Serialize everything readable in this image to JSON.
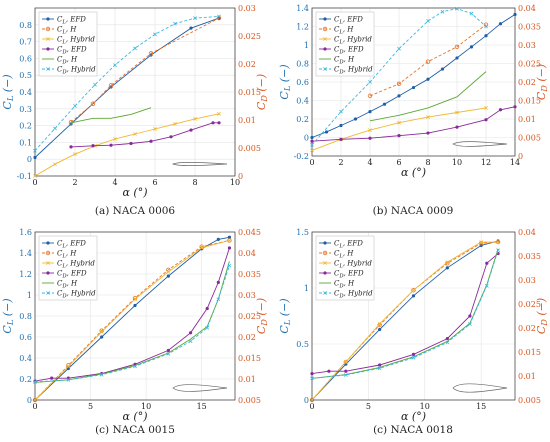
{
  "colors": {
    "cl_efd": "#1f5fa8",
    "cl_h": "#e8722a",
    "cl_hybrid": "#f0b830",
    "cd_efd": "#8a2a9a",
    "cd_h": "#5aa832",
    "cd_hybrid": "#3cb7e0",
    "left_axis": "#1f6fb0",
    "right_axis": "#d9541e"
  },
  "chart_data": [
    {
      "type": "line",
      "caption": "(a) NACA 0006",
      "xlabel": "α (°)",
      "ylabel_left": "C_L (−)",
      "ylabel_right": "C_D (−)",
      "xlim": [
        0,
        10
      ],
      "xticks": [
        0,
        2,
        4,
        6,
        8,
        10
      ],
      "ylim_left": [
        -0.1,
        0.9
      ],
      "yticks_left": [
        -0.1,
        0,
        0.1,
        0.2,
        0.3,
        0.4,
        0.5,
        0.6,
        0.7,
        0.8
      ],
      "ylim_right": [
        0,
        0.03
      ],
      "yticks_right": [
        0,
        0.005,
        0.01,
        0.015,
        0.02,
        0.025,
        0.03
      ],
      "legend": [
        "C_L, EFD",
        "C_L, H",
        "C_L, Hybrid",
        "C_D, EFD",
        "C_D, H",
        "C_D, Hybrid"
      ],
      "legend_position": "top-left",
      "series": [
        {
          "name": "C_L, EFD",
          "axis": "left",
          "x": [
            0,
            1.8,
            3.8,
            5.8,
            7.8,
            9.2
          ],
          "y": [
            0.01,
            0.21,
            0.43,
            0.62,
            0.78,
            0.84
          ]
        },
        {
          "name": "C_L, H",
          "axis": "left",
          "x": [
            1.8,
            2.9,
            3.8,
            5.8,
            9.2
          ],
          "y": [
            0.22,
            0.33,
            0.44,
            0.63,
            0.84
          ]
        },
        {
          "name": "C_L, Hybrid",
          "axis": "left",
          "x": [
            0,
            1,
            2,
            3,
            4,
            5,
            6,
            7,
            8,
            9.2
          ],
          "y": [
            -0.1,
            -0.03,
            0.03,
            0.08,
            0.12,
            0.15,
            0.18,
            0.21,
            0.24,
            0.27
          ]
        },
        {
          "name": "C_D, EFD",
          "axis": "right",
          "x": [
            1.8,
            2.9,
            3.8,
            4.8,
            5.8,
            6.8,
            7.8,
            8.9,
            9.2
          ],
          "y": [
            0.0052,
            0.0054,
            0.0055,
            0.0058,
            0.0062,
            0.007,
            0.0082,
            0.0095,
            0.0095
          ]
        },
        {
          "name": "C_D, H",
          "axis": "right",
          "x": [
            1.8,
            2.9,
            3.8,
            4.8,
            5.8
          ],
          "y": [
            0.0095,
            0.0103,
            0.0103,
            0.011,
            0.0122
          ]
        },
        {
          "name": "C_D, Hybrid",
          "axis": "right",
          "x": [
            0,
            1,
            2,
            3,
            4,
            5,
            6,
            7,
            8,
            9.2
          ],
          "y": [
            0.0045,
            0.0085,
            0.0125,
            0.0163,
            0.0198,
            0.0228,
            0.0253,
            0.0272,
            0.0282,
            0.0285
          ]
        }
      ]
    },
    {
      "type": "line",
      "caption": "(b) NACA 0009",
      "xlabel": "α (°)",
      "ylabel_left": "C_L (−)",
      "ylabel_right": "C_D (−)",
      "xlim": [
        0,
        14
      ],
      "xticks": [
        0,
        2,
        4,
        6,
        8,
        10,
        12,
        14
      ],
      "ylim_left": [
        -0.2,
        1.4
      ],
      "yticks_left": [
        -0.2,
        0,
        0.2,
        0.4,
        0.6,
        0.8,
        1,
        1.2,
        1.4
      ],
      "ylim_right": [
        0,
        0.04
      ],
      "yticks_right": [
        0,
        0.005,
        0.01,
        0.015,
        0.02,
        0.025,
        0.03,
        0.035,
        0.04
      ],
      "legend": [
        "C_L, EFD",
        "C_L, H",
        "C_L, Hybrid",
        "C_D, EFD",
        "C_D, H",
        "C_D, Hybrid"
      ],
      "legend_position": "top-left",
      "series": [
        {
          "name": "C_L, EFD",
          "axis": "left",
          "x": [
            0,
            1,
            2,
            3,
            4,
            5,
            6,
            7,
            8,
            9,
            10,
            11,
            12,
            13,
            14
          ],
          "y": [
            0,
            0.06,
            0.13,
            0.2,
            0.28,
            0.36,
            0.45,
            0.54,
            0.63,
            0.74,
            0.86,
            0.98,
            1.1,
            1.23,
            1.33
          ]
        },
        {
          "name": "C_L, H",
          "axis": "left",
          "x": [
            4,
            6,
            8,
            10,
            12
          ],
          "y": [
            0.45,
            0.58,
            0.82,
            0.98,
            1.22
          ]
        },
        {
          "name": "C_L, Hybrid",
          "axis": "left",
          "x": [
            0,
            2,
            4,
            6,
            8,
            10,
            12
          ],
          "y": [
            -0.14,
            -0.02,
            0.08,
            0.16,
            0.22,
            0.27,
            0.32
          ]
        },
        {
          "name": "C_D, EFD",
          "axis": "right",
          "x": [
            0,
            2,
            4,
            6,
            8,
            10,
            12,
            13,
            14
          ],
          "y": [
            0.004,
            0.0045,
            0.0048,
            0.0055,
            0.0062,
            0.0078,
            0.0098,
            0.0125,
            0.0133
          ]
        },
        {
          "name": "C_D, H",
          "axis": "right",
          "x": [
            4,
            6,
            8,
            10,
            12
          ],
          "y": [
            0.0095,
            0.011,
            0.013,
            0.016,
            0.0228
          ]
        },
        {
          "name": "C_D, Hybrid",
          "axis": "right",
          "x": [
            0,
            2,
            4,
            6,
            8,
            9,
            10,
            11,
            12
          ],
          "y": [
            0.003,
            0.012,
            0.02,
            0.029,
            0.0365,
            0.039,
            0.0398,
            0.0385,
            0.035
          ]
        }
      ]
    },
    {
      "type": "line",
      "caption": "(c) NACA 0015",
      "xlabel": "α (°)",
      "ylabel_left": "C_L (−)",
      "ylabel_right": "C_D (−)",
      "xlim": [
        0,
        18
      ],
      "xticks": [
        0,
        5,
        10,
        15
      ],
      "ylim_left": [
        0,
        1.6
      ],
      "yticks_left": [
        0,
        0.2,
        0.4,
        0.6,
        0.8,
        1,
        1.2,
        1.4,
        1.6
      ],
      "ylim_right": [
        0.005,
        0.045
      ],
      "yticks_right": [
        0.005,
        0.01,
        0.015,
        0.02,
        0.025,
        0.03,
        0.035,
        0.04,
        0.045
      ],
      "legend": [
        "C_L, EFD",
        "C_L, H",
        "C_L, Hybrid",
        "C_D, EFD",
        "C_D, H",
        "C_D, Hybrid"
      ],
      "legend_position": "top-left",
      "series": [
        {
          "name": "C_L, EFD",
          "axis": "left",
          "x": [
            0,
            3,
            6,
            9,
            12,
            15,
            16.5,
            17.5
          ],
          "y": [
            0,
            0.3,
            0.6,
            0.9,
            1.18,
            1.44,
            1.53,
            1.55
          ]
        },
        {
          "name": "C_L, H",
          "axis": "left",
          "x": [
            0,
            3,
            6,
            9,
            12,
            15,
            17.5
          ],
          "y": [
            0,
            0.33,
            0.66,
            0.97,
            1.24,
            1.46,
            1.52
          ]
        },
        {
          "name": "C_L, Hybrid",
          "axis": "left",
          "x": [
            0,
            3,
            6,
            9,
            12,
            15,
            17.5
          ],
          "y": [
            0,
            0.32,
            0.65,
            0.96,
            1.22,
            1.45,
            1.52
          ]
        },
        {
          "name": "C_D, EFD",
          "axis": "right",
          "x": [
            0,
            1.5,
            3,
            6,
            9,
            12,
            14,
            15.5,
            16.5,
            17.5
          ],
          "y": [
            0.0095,
            0.0102,
            0.0102,
            0.0113,
            0.0135,
            0.0168,
            0.021,
            0.0268,
            0.033,
            0.0412
          ]
        },
        {
          "name": "C_D, H",
          "axis": "right",
          "x": [
            0,
            3,
            6,
            9,
            12,
            14,
            15.5,
            16.5,
            17.5
          ],
          "y": [
            0.0092,
            0.0098,
            0.0112,
            0.0132,
            0.0162,
            0.0195,
            0.0225,
            0.029,
            0.038
          ]
        },
        {
          "name": "C_D, Hybrid",
          "axis": "right",
          "x": [
            0,
            3,
            6,
            9,
            12,
            14,
            15.5,
            16.5,
            17.5
          ],
          "y": [
            0.0093,
            0.0098,
            0.011,
            0.013,
            0.016,
            0.019,
            0.0222,
            0.029,
            0.037
          ]
        }
      ]
    },
    {
      "type": "line",
      "caption": "(c) NACA 0018",
      "xlabel": "α (°)",
      "ylabel_left": "C_L (−)",
      "ylabel_right": "C_D (−)",
      "xlim": [
        0,
        18
      ],
      "xticks": [
        0,
        5,
        10,
        15
      ],
      "ylim_left": [
        0,
        1.5
      ],
      "yticks_left": [
        0,
        0.5,
        1,
        1.5
      ],
      "ylim_right": [
        0.005,
        0.04
      ],
      "yticks_right": [
        0.005,
        0.01,
        0.015,
        0.02,
        0.025,
        0.03,
        0.035,
        0.04
      ],
      "legend": [
        "C_L, EFD",
        "C_L, H",
        "C_L, Hybrid",
        "C_D, EFD",
        "C_D, H",
        "C_D, Hybrid"
      ],
      "legend_position": "top-left",
      "series": [
        {
          "name": "C_L, EFD",
          "axis": "left",
          "x": [
            0,
            3,
            6,
            9,
            12,
            15,
            16.5
          ],
          "y": [
            0,
            0.32,
            0.63,
            0.93,
            1.18,
            1.38,
            1.42
          ]
        },
        {
          "name": "C_L, H",
          "axis": "left",
          "x": [
            0,
            3,
            6,
            9,
            12,
            15,
            16.5
          ],
          "y": [
            0,
            0.34,
            0.67,
            0.98,
            1.22,
            1.4,
            1.41
          ]
        },
        {
          "name": "C_L, Hybrid",
          "axis": "left",
          "x": [
            0,
            3,
            6,
            9,
            12,
            15,
            16.5
          ],
          "y": [
            0,
            0.34,
            0.68,
            0.98,
            1.23,
            1.41,
            1.41
          ]
        },
        {
          "name": "C_D, EFD",
          "axis": "right",
          "x": [
            0,
            1.5,
            3,
            6,
            9,
            12,
            14,
            15.5,
            16.5
          ],
          "y": [
            0.0105,
            0.011,
            0.011,
            0.0123,
            0.0145,
            0.0178,
            0.0225,
            0.0335,
            0.0355
          ]
        },
        {
          "name": "C_D, H",
          "axis": "right",
          "x": [
            0,
            3,
            6,
            9,
            12,
            14,
            15.5,
            16.5
          ],
          "y": [
            0.0095,
            0.0103,
            0.0118,
            0.014,
            0.0172,
            0.021,
            0.029,
            0.0365
          ]
        },
        {
          "name": "C_D, Hybrid",
          "axis": "right",
          "x": [
            0,
            3,
            6,
            9,
            12,
            14,
            15.5,
            16.5
          ],
          "y": [
            0.0095,
            0.0102,
            0.0116,
            0.0138,
            0.017,
            0.0208,
            0.0288,
            0.0362
          ]
        }
      ]
    }
  ]
}
